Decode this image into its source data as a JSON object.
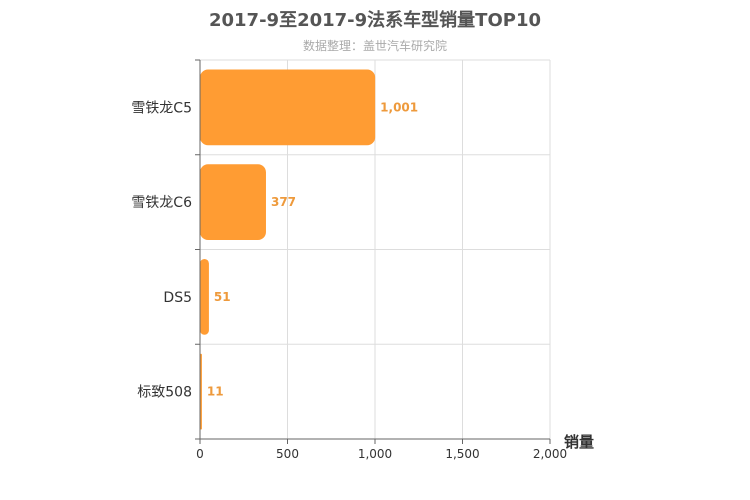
{
  "chart_data": {
    "type": "bar",
    "orientation": "horizontal",
    "title": "2017-9至2017-9法系车型销量TOP10",
    "subtitle": "数据整理：盖世汽车研究院",
    "categories": [
      "雪铁龙C5",
      "雪铁龙C6",
      "DS5",
      "标致508"
    ],
    "values": [
      1001,
      377,
      51,
      11
    ],
    "value_labels": [
      "1,001",
      "377",
      "51",
      "11"
    ],
    "xlabel": "销量",
    "xlim": [
      0,
      2000
    ],
    "xticks": [
      0,
      500,
      1000,
      1500,
      2000
    ],
    "xtick_labels": [
      "0",
      "500",
      "1,000",
      "1,500",
      "2,000"
    ],
    "grid": true,
    "bar_color": "#ff9c33",
    "label_color": "#ee9a3c"
  }
}
